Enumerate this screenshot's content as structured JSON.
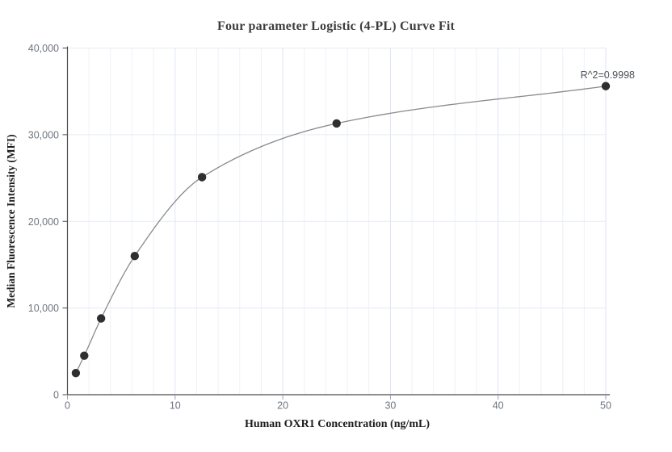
{
  "chart_data": {
    "type": "scatter",
    "title": "Four parameter Logistic (4-PL) Curve Fit",
    "xlabel": "Human OXR1 Concentration (ng/mL)",
    "ylabel": "Median Fluorescence Intensity (MFI)",
    "annotation": "R^2=0.9998",
    "x": [
      0.78,
      1.56,
      3.125,
      6.25,
      12.5,
      25,
      50
    ],
    "y": [
      2500,
      4500,
      8800,
      16000,
      25100,
      31300,
      35600
    ],
    "xlim": [
      0,
      50
    ],
    "ylim": [
      0,
      40000
    ],
    "x_tick_values": [
      0,
      10,
      20,
      30,
      40,
      50
    ],
    "x_tick_labels": [
      "0",
      "10",
      "20",
      "30",
      "40",
      "50"
    ],
    "y_tick_values": [
      0,
      10000,
      20000,
      30000,
      40000
    ],
    "y_tick_labels": [
      "0",
      "10,000",
      "20,000",
      "30,000",
      "40,000"
    ],
    "x_minor_grid_step": 2,
    "grid": true,
    "legend": "none",
    "curve": "4PL fit line through points",
    "colors": {
      "point": "#2f2f2f",
      "curve": "#8a8a8a",
      "grid_minor": "#edf1f8",
      "grid_major": "#dde4f1",
      "grid_horizontal": "#e5eaf4",
      "axis": "#4a4a4a",
      "tick_mark": "#9aa3b0",
      "tick_label": "#6e7680"
    }
  }
}
